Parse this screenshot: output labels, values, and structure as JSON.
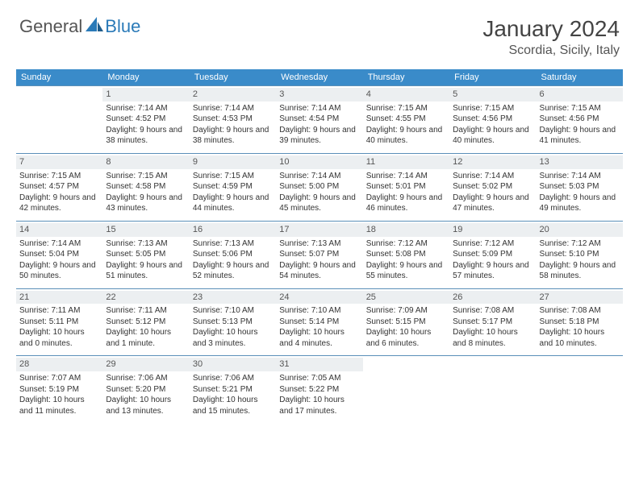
{
  "logo": {
    "general": "General",
    "blue": "Blue"
  },
  "title": "January 2024",
  "location": "Scordia, Sicily, Italy",
  "colors": {
    "header_bg": "#3a8bc9",
    "header_text": "#ffffff",
    "daynum_bg": "#eceff1",
    "row_border": "#5a8fb8",
    "logo_blue": "#2a7ab8"
  },
  "day_headers": [
    "Sunday",
    "Monday",
    "Tuesday",
    "Wednesday",
    "Thursday",
    "Friday",
    "Saturday"
  ],
  "weeks": [
    [
      {
        "n": "",
        "sr": "",
        "ss": "",
        "dl": ""
      },
      {
        "n": "1",
        "sr": "Sunrise: 7:14 AM",
        "ss": "Sunset: 4:52 PM",
        "dl": "Daylight: 9 hours and 38 minutes."
      },
      {
        "n": "2",
        "sr": "Sunrise: 7:14 AM",
        "ss": "Sunset: 4:53 PM",
        "dl": "Daylight: 9 hours and 38 minutes."
      },
      {
        "n": "3",
        "sr": "Sunrise: 7:14 AM",
        "ss": "Sunset: 4:54 PM",
        "dl": "Daylight: 9 hours and 39 minutes."
      },
      {
        "n": "4",
        "sr": "Sunrise: 7:15 AM",
        "ss": "Sunset: 4:55 PM",
        "dl": "Daylight: 9 hours and 40 minutes."
      },
      {
        "n": "5",
        "sr": "Sunrise: 7:15 AM",
        "ss": "Sunset: 4:56 PM",
        "dl": "Daylight: 9 hours and 40 minutes."
      },
      {
        "n": "6",
        "sr": "Sunrise: 7:15 AM",
        "ss": "Sunset: 4:56 PM",
        "dl": "Daylight: 9 hours and 41 minutes."
      }
    ],
    [
      {
        "n": "7",
        "sr": "Sunrise: 7:15 AM",
        "ss": "Sunset: 4:57 PM",
        "dl": "Daylight: 9 hours and 42 minutes."
      },
      {
        "n": "8",
        "sr": "Sunrise: 7:15 AM",
        "ss": "Sunset: 4:58 PM",
        "dl": "Daylight: 9 hours and 43 minutes."
      },
      {
        "n": "9",
        "sr": "Sunrise: 7:15 AM",
        "ss": "Sunset: 4:59 PM",
        "dl": "Daylight: 9 hours and 44 minutes."
      },
      {
        "n": "10",
        "sr": "Sunrise: 7:14 AM",
        "ss": "Sunset: 5:00 PM",
        "dl": "Daylight: 9 hours and 45 minutes."
      },
      {
        "n": "11",
        "sr": "Sunrise: 7:14 AM",
        "ss": "Sunset: 5:01 PM",
        "dl": "Daylight: 9 hours and 46 minutes."
      },
      {
        "n": "12",
        "sr": "Sunrise: 7:14 AM",
        "ss": "Sunset: 5:02 PM",
        "dl": "Daylight: 9 hours and 47 minutes."
      },
      {
        "n": "13",
        "sr": "Sunrise: 7:14 AM",
        "ss": "Sunset: 5:03 PM",
        "dl": "Daylight: 9 hours and 49 minutes."
      }
    ],
    [
      {
        "n": "14",
        "sr": "Sunrise: 7:14 AM",
        "ss": "Sunset: 5:04 PM",
        "dl": "Daylight: 9 hours and 50 minutes."
      },
      {
        "n": "15",
        "sr": "Sunrise: 7:13 AM",
        "ss": "Sunset: 5:05 PM",
        "dl": "Daylight: 9 hours and 51 minutes."
      },
      {
        "n": "16",
        "sr": "Sunrise: 7:13 AM",
        "ss": "Sunset: 5:06 PM",
        "dl": "Daylight: 9 hours and 52 minutes."
      },
      {
        "n": "17",
        "sr": "Sunrise: 7:13 AM",
        "ss": "Sunset: 5:07 PM",
        "dl": "Daylight: 9 hours and 54 minutes."
      },
      {
        "n": "18",
        "sr": "Sunrise: 7:12 AM",
        "ss": "Sunset: 5:08 PM",
        "dl": "Daylight: 9 hours and 55 minutes."
      },
      {
        "n": "19",
        "sr": "Sunrise: 7:12 AM",
        "ss": "Sunset: 5:09 PM",
        "dl": "Daylight: 9 hours and 57 minutes."
      },
      {
        "n": "20",
        "sr": "Sunrise: 7:12 AM",
        "ss": "Sunset: 5:10 PM",
        "dl": "Daylight: 9 hours and 58 minutes."
      }
    ],
    [
      {
        "n": "21",
        "sr": "Sunrise: 7:11 AM",
        "ss": "Sunset: 5:11 PM",
        "dl": "Daylight: 10 hours and 0 minutes."
      },
      {
        "n": "22",
        "sr": "Sunrise: 7:11 AM",
        "ss": "Sunset: 5:12 PM",
        "dl": "Daylight: 10 hours and 1 minute."
      },
      {
        "n": "23",
        "sr": "Sunrise: 7:10 AM",
        "ss": "Sunset: 5:13 PM",
        "dl": "Daylight: 10 hours and 3 minutes."
      },
      {
        "n": "24",
        "sr": "Sunrise: 7:10 AM",
        "ss": "Sunset: 5:14 PM",
        "dl": "Daylight: 10 hours and 4 minutes."
      },
      {
        "n": "25",
        "sr": "Sunrise: 7:09 AM",
        "ss": "Sunset: 5:15 PM",
        "dl": "Daylight: 10 hours and 6 minutes."
      },
      {
        "n": "26",
        "sr": "Sunrise: 7:08 AM",
        "ss": "Sunset: 5:17 PM",
        "dl": "Daylight: 10 hours and 8 minutes."
      },
      {
        "n": "27",
        "sr": "Sunrise: 7:08 AM",
        "ss": "Sunset: 5:18 PM",
        "dl": "Daylight: 10 hours and 10 minutes."
      }
    ],
    [
      {
        "n": "28",
        "sr": "Sunrise: 7:07 AM",
        "ss": "Sunset: 5:19 PM",
        "dl": "Daylight: 10 hours and 11 minutes."
      },
      {
        "n": "29",
        "sr": "Sunrise: 7:06 AM",
        "ss": "Sunset: 5:20 PM",
        "dl": "Daylight: 10 hours and 13 minutes."
      },
      {
        "n": "30",
        "sr": "Sunrise: 7:06 AM",
        "ss": "Sunset: 5:21 PM",
        "dl": "Daylight: 10 hours and 15 minutes."
      },
      {
        "n": "31",
        "sr": "Sunrise: 7:05 AM",
        "ss": "Sunset: 5:22 PM",
        "dl": "Daylight: 10 hours and 17 minutes."
      },
      {
        "n": "",
        "sr": "",
        "ss": "",
        "dl": ""
      },
      {
        "n": "",
        "sr": "",
        "ss": "",
        "dl": ""
      },
      {
        "n": "",
        "sr": "",
        "ss": "",
        "dl": ""
      }
    ]
  ]
}
